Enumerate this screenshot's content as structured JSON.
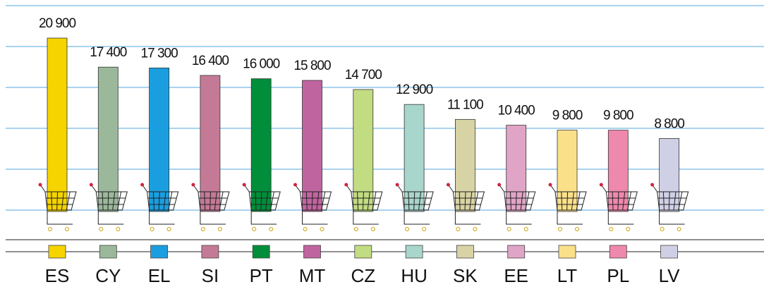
{
  "chart_data": {
    "type": "bar",
    "categories": [
      "ES",
      "CY",
      "EL",
      "SI",
      "PT",
      "MT",
      "CZ",
      "HU",
      "SK",
      "EE",
      "LT",
      "PL",
      "LV"
    ],
    "values": [
      20900,
      17400,
      17300,
      16400,
      16000,
      15800,
      14700,
      12900,
      11100,
      10400,
      9800,
      9800,
      8800
    ],
    "value_labels": [
      "20 900",
      "17 400",
      "17 300",
      "16 400",
      "16 000",
      "15 800",
      "14 700",
      "12 900",
      "11 100",
      "10 400",
      "9 800",
      "9 800",
      "8 800"
    ],
    "colors": [
      "#f5d400",
      "#9bb89b",
      "#1a9ee0",
      "#c47a96",
      "#008e3a",
      "#c064a0",
      "#c2dc82",
      "#a8d5cc",
      "#d8d3a4",
      "#e0a4c6",
      "#fbe08a",
      "#ef88ad",
      "#cfcfe6"
    ]
  }
}
